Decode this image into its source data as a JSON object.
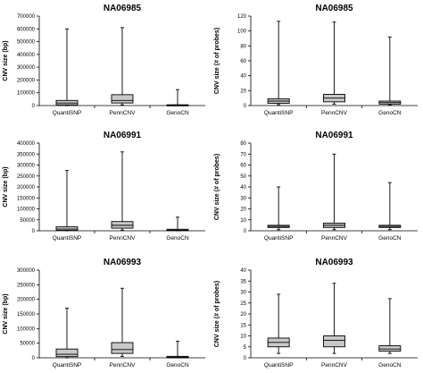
{
  "chart_data": [
    {
      "type": "box",
      "title": "NA06985",
      "ylabel": "CNV size (bp)",
      "ylim": [
        0,
        700000
      ],
      "yticks": [
        0,
        100000,
        200000,
        300000,
        400000,
        500000,
        600000,
        700000
      ],
      "categories": [
        "QuantiSNP",
        "PennCNV",
        "GenoCN"
      ],
      "boxes": [
        {
          "min": 0,
          "q1": 5000,
          "median": 20000,
          "q3": 40000,
          "max": 600000
        },
        {
          "min": 5000,
          "q1": 20000,
          "median": 40000,
          "q3": 85000,
          "max": 610000
        },
        {
          "min": 0,
          "q1": 0,
          "median": 2000,
          "q3": 6000,
          "max": 125000
        }
      ]
    },
    {
      "type": "box",
      "title": "NA06985",
      "ylabel": "CNV size (# of probes)",
      "ylim": [
        0,
        120
      ],
      "yticks": [
        0,
        20,
        40,
        60,
        80,
        100,
        120
      ],
      "categories": [
        "QuantiSNP",
        "PennCNV",
        "GenoCN"
      ],
      "boxes": [
        {
          "min": 1,
          "q1": 3,
          "median": 6,
          "q3": 9,
          "max": 113
        },
        {
          "min": 2,
          "q1": 5,
          "median": 10,
          "q3": 15,
          "max": 112
        },
        {
          "min": 1,
          "q1": 2,
          "median": 4,
          "q3": 6,
          "max": 92
        }
      ]
    },
    {
      "type": "box",
      "title": "NA06991",
      "ylabel": "CNV size (bp)",
      "ylim": [
        0,
        400000
      ],
      "yticks": [
        0,
        50000,
        100000,
        150000,
        200000,
        250000,
        300000,
        350000,
        400000
      ],
      "categories": [
        "QuantiSNP",
        "PennCNV",
        "GenoCN"
      ],
      "boxes": [
        {
          "min": 0,
          "q1": 2000,
          "median": 8000,
          "q3": 18000,
          "max": 275000
        },
        {
          "min": 3000,
          "q1": 12000,
          "median": 25000,
          "q3": 42000,
          "max": 360000
        },
        {
          "min": 0,
          "q1": 1000,
          "median": 3000,
          "q3": 7000,
          "max": 62000
        }
      ]
    },
    {
      "type": "box",
      "title": "NA06991",
      "ylabel": "CNV size (# of probes)",
      "ylim": [
        0,
        80
      ],
      "yticks": [
        0,
        10,
        20,
        30,
        40,
        50,
        60,
        70,
        80
      ],
      "categories": [
        "QuantiSNP",
        "PennCNV",
        "GenoCN"
      ],
      "boxes": [
        {
          "min": 1,
          "q1": 3,
          "median": 4,
          "q3": 5,
          "max": 40
        },
        {
          "min": 1,
          "q1": 3,
          "median": 5,
          "q3": 7,
          "max": 70
        },
        {
          "min": 1,
          "q1": 3,
          "median": 4,
          "q3": 5,
          "max": 44
        }
      ]
    },
    {
      "type": "box",
      "title": "NA06993",
      "ylabel": "CNV size (bp)",
      "ylim": [
        0,
        300000
      ],
      "yticks": [
        0,
        50000,
        100000,
        150000,
        200000,
        250000,
        300000
      ],
      "categories": [
        "QuantiSNP",
        "PennCNV",
        "GenoCN"
      ],
      "boxes": [
        {
          "min": 0,
          "q1": 4000,
          "median": 12000,
          "q3": 30000,
          "max": 170000
        },
        {
          "min": 5000,
          "q1": 15000,
          "median": 28000,
          "q3": 52000,
          "max": 238000
        },
        {
          "min": 0,
          "q1": 0,
          "median": 2000,
          "q3": 5000,
          "max": 57000
        }
      ]
    },
    {
      "type": "box",
      "title": "NA06993",
      "ylabel": "CNV size (# of probes)",
      "ylim": [
        0,
        40
      ],
      "yticks": [
        0,
        5,
        10,
        15,
        20,
        25,
        30,
        35,
        40
      ],
      "categories": [
        "QuantiSNP",
        "PennCNV",
        "GenoCN"
      ],
      "boxes": [
        {
          "min": 2,
          "q1": 5,
          "median": 7,
          "q3": 9,
          "max": 29
        },
        {
          "min": 2,
          "q1": 5,
          "median": 8,
          "q3": 10,
          "max": 34
        },
        {
          "min": 2,
          "q1": 3,
          "median": 4,
          "q3": 5.5,
          "max": 27
        }
      ]
    }
  ]
}
